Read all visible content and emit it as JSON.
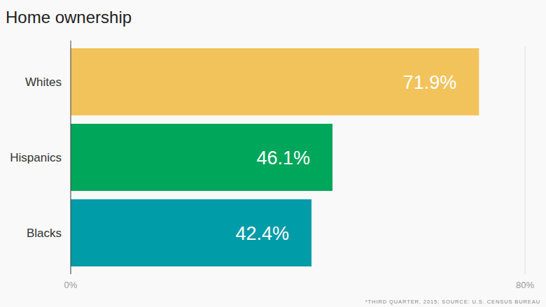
{
  "chart_data": {
    "type": "bar",
    "title": "Home ownership",
    "orientation": "horizontal",
    "categories": [
      "Whites",
      "Hispanics",
      "Blacks"
    ],
    "values": [
      71.9,
      46.1,
      42.4
    ],
    "value_labels": [
      "71.9%",
      "46.1%",
      "42.4%"
    ],
    "data_labels": true,
    "colors": [
      "#f2c35b",
      "#00a659",
      "#009ca8"
    ],
    "xlim": [
      0,
      80
    ],
    "xticks": [
      {
        "value": 0,
        "label": "0%"
      },
      {
        "value": 80,
        "label": "80%"
      }
    ],
    "grid": true,
    "annotations": [
      "*THIRD QUARTER, 2015; SOURCE: U.S. CENSUS BUREAU"
    ]
  }
}
